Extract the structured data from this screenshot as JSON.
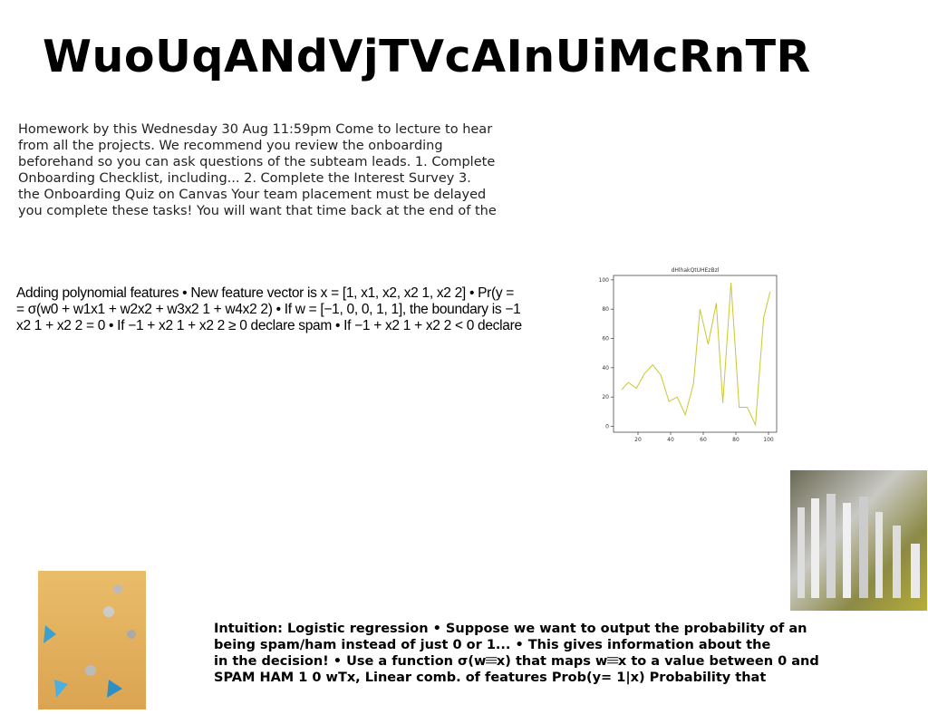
{
  "title": "WuoUqANdVjTVcAInUiMcRnTR",
  "homework": {
    "lines": [
      "Homework by this Wednesday 30 Aug 11:59pm Come to lecture to hear",
      "from all the projects. We recommend you review the onboarding",
      "beforehand so you can ask questions of the subteam leads. 1. Complete",
      "Onboarding Checklist, including... 2. Complete the Interest Survey 3.",
      "the Onboarding Quiz on Canvas Your team placement must be delayed",
      "you complete these tasks! You will want that time back at the end of the"
    ]
  },
  "polynomial": {
    "lines": [
      "Adding polynomial features • New feature vector is x = [1, x1, x2, x2 1, x2 2] • Pr(y =",
      "= σ(w0 + w1x1 + w2x2 + w3x2 1 + w4x2 2) • If w = [−1, 0, 0, 1, 1], the boundary is −1",
      "x2 1 + x2 2 = 0 • If −1 + x2 1 + x2 2 ≥ 0 declare spam • If −1 + x2 1 + x2 2 < 0 declare"
    ]
  },
  "intuition": {
    "lines": [
      "Intuition: Logistic regression • Suppose we want to output the probability of an",
      "being spam/ham instead of just 0 or 1... • This gives information about the",
      "in the decision! • Use a function σ(w𝄘x) that maps w𝄘x to a value between 0 and",
      "SPAM HAM 1 0 wTx, Linear comb. of features Prob(y= 1|x) Probability that"
    ]
  },
  "chart_data": {
    "type": "line",
    "title": "dHlhakQtUHEzBzl",
    "x": [
      10,
      14,
      19,
      24,
      29,
      34,
      39,
      44,
      49,
      54,
      58,
      63,
      68,
      72,
      77,
      82,
      87,
      92,
      97,
      101
    ],
    "series": [
      {
        "name": "dHlhakQtUHEzBzl",
        "color": "#c8c832",
        "values": [
          25,
          30,
          26,
          36,
          42,
          35,
          17,
          20,
          8,
          29,
          80,
          56,
          84,
          16,
          98,
          13,
          13,
          1,
          74,
          92
        ]
      }
    ],
    "xlim": [
      5,
      105
    ],
    "ylim": [
      -4,
      103
    ],
    "xticks": [
      20,
      40,
      60,
      80,
      100
    ],
    "yticks": [
      0,
      20,
      40,
      60,
      80,
      100
    ]
  }
}
